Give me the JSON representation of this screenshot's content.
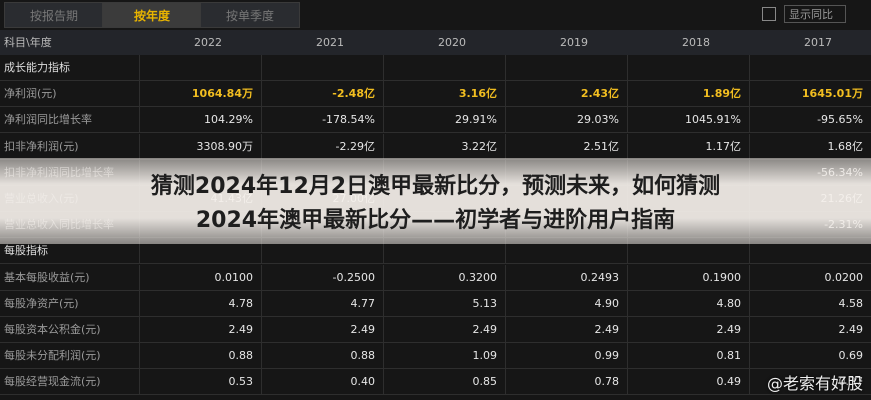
{
  "tabs": [
    "按报告期",
    "按年度",
    "按单季度"
  ],
  "checkbox_label": "显示同比",
  "table": {
    "header": [
      "科目\\年度",
      "2022",
      "2021",
      "2020",
      "2019",
      "2018",
      "2017"
    ],
    "rows": [
      {
        "label": "成长能力指标"
      },
      {
        "label": "净利润(元)",
        "cells": [
          "1064.84万",
          "-2.48亿",
          "3.16亿",
          "2.43亿",
          "1.89亿",
          "1645.01万"
        ]
      },
      {
        "label": "净利润同比增长率",
        "cells": [
          "104.29%",
          "-178.54%",
          "29.91%",
          "29.03%",
          "1045.91%",
          "-95.65%"
        ]
      },
      {
        "label": "扣非净利润(元)",
        "cells": [
          "3308.90万",
          "-2.29亿",
          "3.22亿",
          "2.51亿",
          "1.17亿",
          "1.68亿"
        ]
      },
      {
        "label": "扣非净利润同比增长率",
        "cells": [
          null,
          null,
          null,
          null,
          null,
          "-56.34%"
        ]
      },
      {
        "label": "营业总收入(元)",
        "cells": [
          "41.43亿",
          "27.00亿",
          null,
          null,
          null,
          "21.26亿"
        ]
      },
      {
        "label": "营业总收入同比增长率",
        "cells": [
          null,
          null,
          null,
          null,
          null,
          "-2.31%"
        ]
      },
      {
        "label": "每股指标"
      },
      {
        "label": "基本每股收益(元)",
        "cells": [
          "0.0100",
          "-0.2500",
          "0.3200",
          "0.2493",
          "0.1900",
          "0.0200"
        ]
      },
      {
        "label": "每股净资产(元)",
        "cells": [
          "4.78",
          "4.77",
          "5.13",
          "4.90",
          "4.80",
          "4.58"
        ]
      },
      {
        "label": "每股资本公积金(元)",
        "cells": [
          "2.49",
          "2.49",
          "2.49",
          "2.49",
          "2.49",
          "2.49"
        ]
      },
      {
        "label": "每股未分配利润(元)",
        "cells": [
          "0.88",
          "0.88",
          "1.09",
          "0.99",
          "0.81",
          "0.69"
        ]
      },
      {
        "label": "每股经营现金流(元)",
        "cells": [
          "0.53",
          "0.40",
          "0.85",
          "0.78",
          "0.49",
          "0.37"
        ]
      }
    ]
  },
  "overlay_title": [
    "猜测2024年12月2日澳甲最新比分，预测未来，如何猜测",
    "2024年澳甲最新比分——初学者与进阶用户指南"
  ],
  "watermark": "@老索有好股"
}
